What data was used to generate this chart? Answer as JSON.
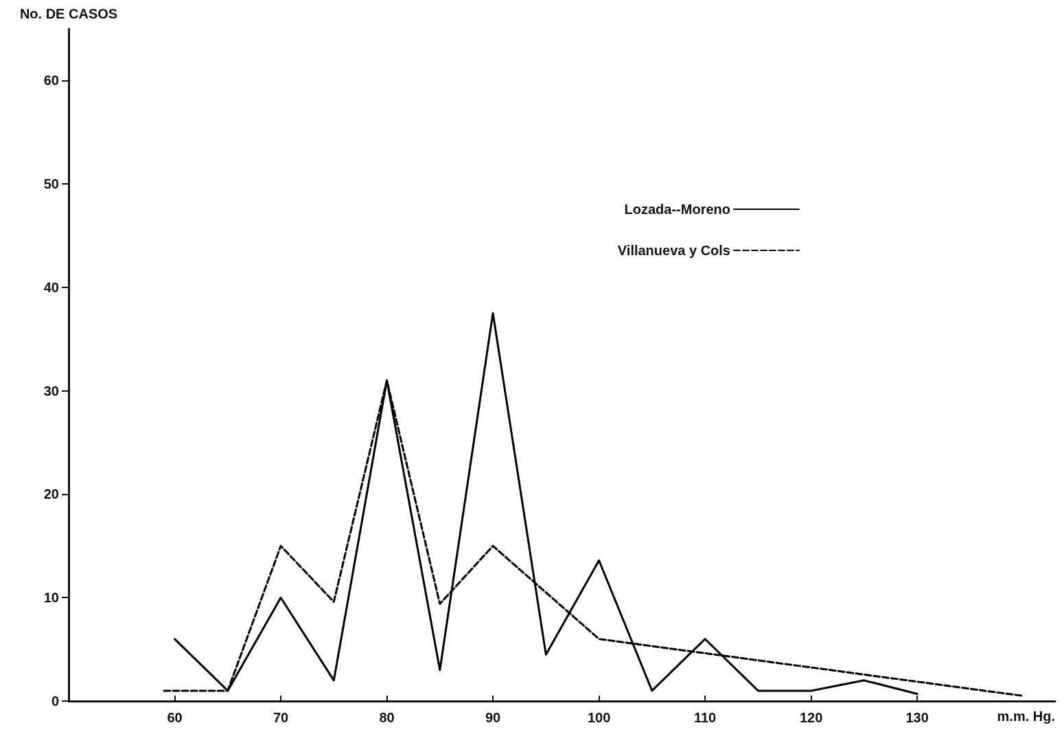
{
  "chart_data": {
    "type": "line",
    "xlabel": "m.m. Hg.",
    "ylabel": "No. DE CASOS",
    "xlim": [
      50,
      143
    ],
    "xticks": [
      60,
      70,
      80,
      90,
      100,
      110,
      120,
      130
    ],
    "ylim": [
      0,
      65
    ],
    "yticks": [
      0,
      10,
      20,
      30,
      40,
      50,
      60
    ],
    "grid": false,
    "legend": "top right",
    "marker": "none",
    "series": [
      {
        "name": "Lozada--Moreno",
        "color": "#000000",
        "line_style": "solid",
        "x": [
          60,
          65,
          70,
          75,
          80,
          85,
          90,
          95,
          100,
          105,
          110,
          115,
          120,
          125,
          130
        ],
        "values": [
          6,
          1,
          10,
          2,
          31,
          3,
          37.5,
          4.5,
          13.6,
          1,
          6,
          1,
          1,
          2,
          0.7
        ]
      },
      {
        "name": "Villanueva y Cols",
        "color": "#000000",
        "line_style": "dashed",
        "x": [
          59,
          65,
          70,
          75,
          80,
          85,
          90,
          100,
          140
        ],
        "values": [
          1,
          1,
          15,
          9.6,
          31,
          9.4,
          15,
          6,
          0.5
        ]
      }
    ]
  }
}
